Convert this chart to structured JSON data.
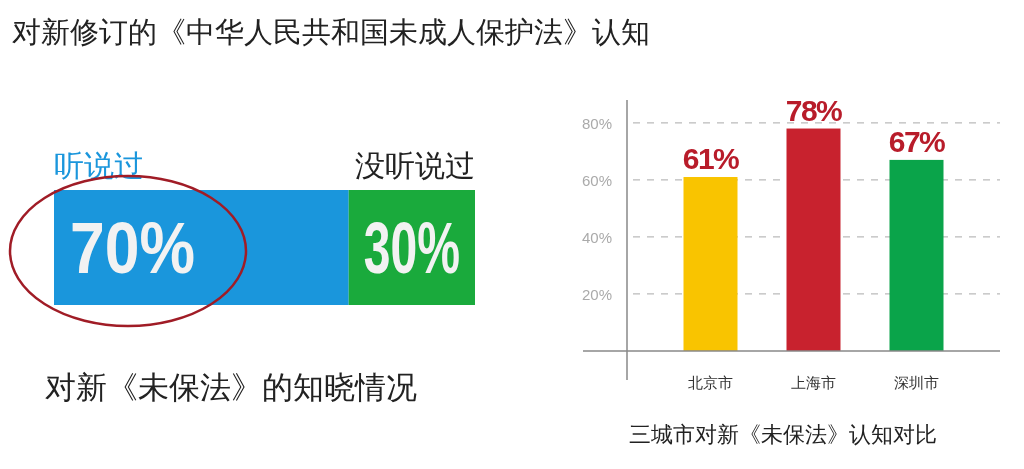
{
  "chart_data": [
    {
      "type": "bar",
      "orientation": "horizontal",
      "stacked": true,
      "title": "对新修订的《中华人民共和国未成人保护法》认知",
      "categories": [
        null
      ],
      "xlim": [
        0,
        100
      ],
      "series": [
        {
          "name": "听说过",
          "color": "#1a96dc",
          "values": [
            70
          ],
          "value_labels": [
            "70%"
          ]
        },
        {
          "name": "没听说过",
          "color": "#1aaa3c",
          "values": [
            30
          ],
          "value_labels": [
            "30%"
          ]
        }
      ],
      "annotations": [
        "对新《未保法》的知晓情况"
      ]
    },
    {
      "type": "bar",
      "title": "三城市对新《未保法》认知对比",
      "categories": [
        "北京市",
        "上海市",
        "深圳市"
      ],
      "values": [
        61,
        78,
        67
      ],
      "value_labels": [
        "61%",
        "78%",
        "67%"
      ],
      "colors": [
        "#f9c400",
        "#c8222e",
        "#0aa44a"
      ],
      "ylim": [
        0,
        88
      ],
      "yticks": [
        {
          "value": 20,
          "label": "20%"
        },
        {
          "value": 40,
          "label": "40%"
        },
        {
          "value": 60,
          "label": "60%"
        },
        {
          "value": 80,
          "label": "80%"
        }
      ],
      "grid": "y"
    }
  ]
}
